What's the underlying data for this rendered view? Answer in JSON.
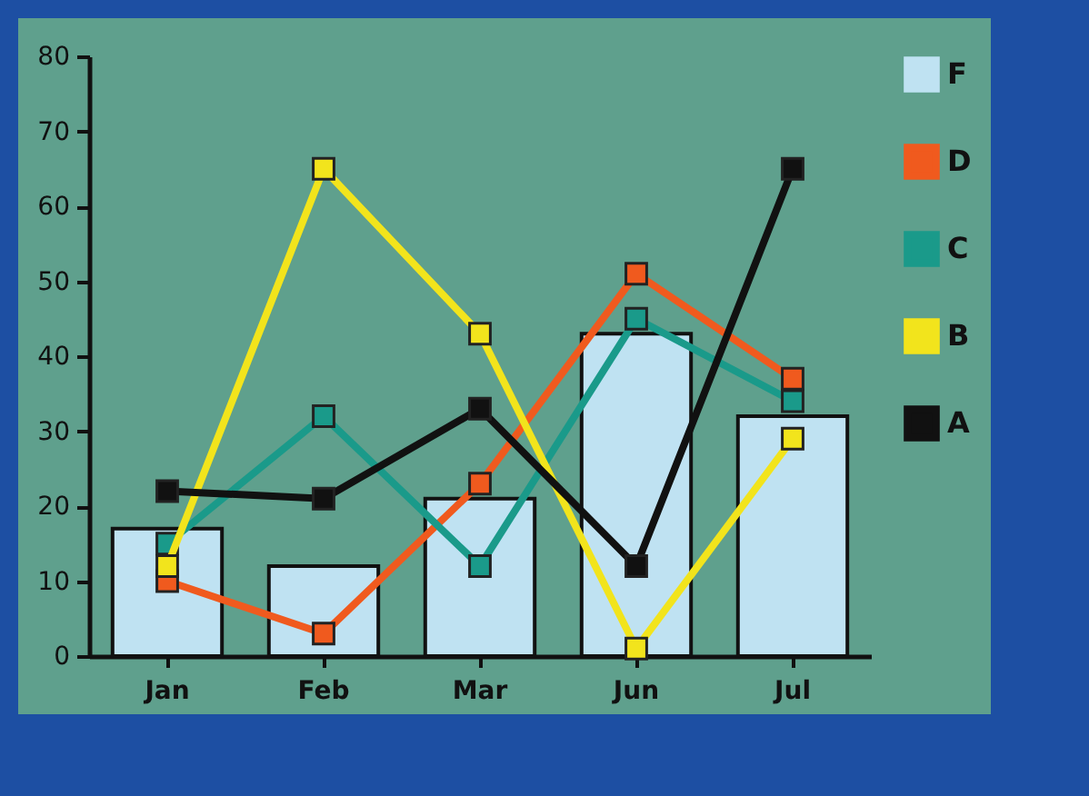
{
  "chart_data": {
    "type": "line",
    "categories": [
      "Jan",
      "Feb",
      "Mar",
      "Jun",
      "Jul"
    ],
    "series": [
      {
        "name": "F",
        "type": "bar",
        "color": "#bfe2f2",
        "values": [
          17,
          12,
          21,
          43,
          32
        ]
      },
      {
        "name": "D",
        "color": "#f05a1e",
        "values": [
          10,
          3,
          23,
          51,
          37
        ]
      },
      {
        "name": "C",
        "color": "#1a9a8a",
        "values": [
          15,
          32,
          12,
          45,
          34
        ]
      },
      {
        "name": "B",
        "color": "#f2e41c",
        "values": [
          12,
          65,
          43,
          1,
          29
        ]
      },
      {
        "name": "A",
        "color": "#111111",
        "values": [
          22,
          21,
          33,
          12,
          65
        ]
      }
    ],
    "ylim": [
      0,
      80
    ],
    "yticks": [
      0,
      10,
      20,
      30,
      40,
      50,
      60,
      70,
      80
    ],
    "grid": false,
    "legend": "top right",
    "marker": "square",
    "line_style": "solid"
  }
}
